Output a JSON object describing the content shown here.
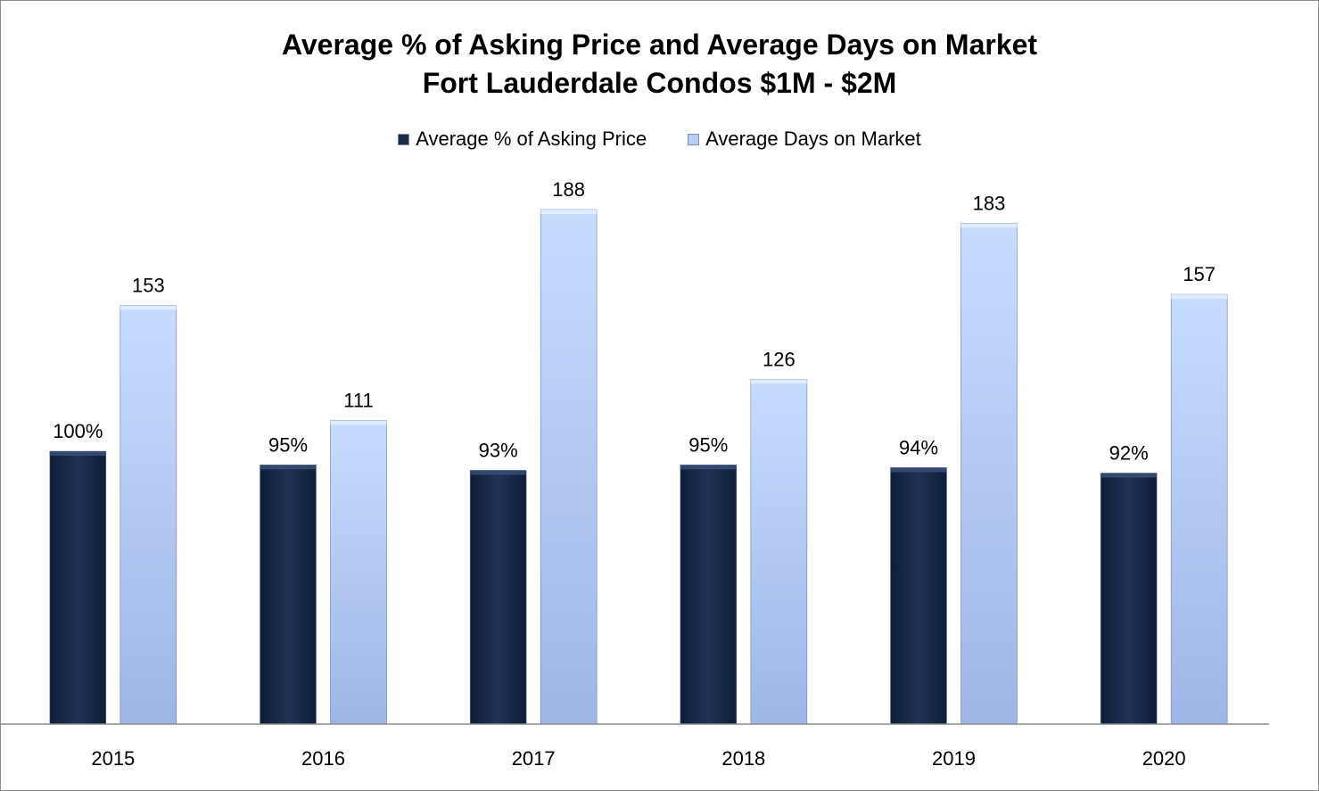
{
  "colors": {
    "series_dark": "#1a2b4a",
    "series_light": "#b7cdf5",
    "axis": "#8c8c8c",
    "text": "#000000"
  },
  "chart_data": {
    "type": "bar",
    "title": [
      "Average % of Asking Price and Average Days on Market",
      "Fort Lauderdale Condos $1M - $2M"
    ],
    "legend_position": "top",
    "grid": false,
    "categories": [
      "2015",
      "2016",
      "2017",
      "2018",
      "2019",
      "2020"
    ],
    "series": [
      {
        "name": "Average % of Asking Price",
        "values": [
          100,
          95,
          93,
          95,
          94,
          92
        ],
        "labels": [
          "100%",
          "95%",
          "93%",
          "95%",
          "94%",
          "92%"
        ],
        "unit": "%"
      },
      {
        "name": "Average Days on Market",
        "values": [
          153,
          111,
          188,
          126,
          183,
          157
        ],
        "labels": [
          "153",
          "111",
          "188",
          "126",
          "183",
          "157"
        ],
        "unit": "days"
      }
    ],
    "ylim": [
      0,
      188
    ]
  }
}
